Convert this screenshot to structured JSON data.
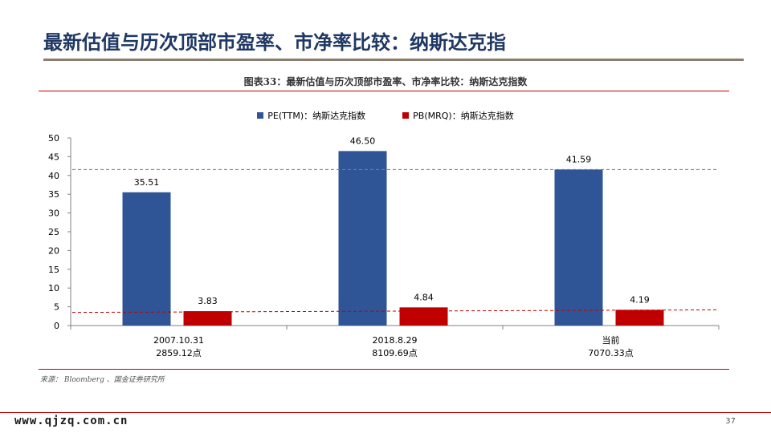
{
  "slide": {
    "title": "最新估值与历次顶部市盈率、市净率比较：纳斯达克指",
    "page_number": "37",
    "watermark": "www.qjzq.com.cn"
  },
  "figure": {
    "caption": "图表33：最新估值与历次顶部市盈率、市净率比较：纳斯达克指数",
    "source": "来源： Bloomberg 、国金证券研究所"
  },
  "colors": {
    "pe": "#2f5597",
    "pb": "#c00000",
    "title": "#1f3864"
  },
  "chart_data": {
    "type": "bar",
    "categories": [
      [
        "2007.10.31",
        "2859.12点"
      ],
      [
        "2018.8.29",
        "8109.69点"
      ],
      [
        "当前",
        "7070.33点"
      ]
    ],
    "series": [
      {
        "name": "PE(TTM)：纳斯达克指数",
        "values": [
          35.51,
          46.5,
          41.59
        ],
        "labels": [
          "35.51",
          "46.50",
          "41.59"
        ]
      },
      {
        "name": "PB(MRQ)：纳斯达克指数",
        "values": [
          3.83,
          4.84,
          4.19
        ],
        "labels": [
          "3.83",
          "4.84",
          "4.19"
        ]
      }
    ],
    "ylim": [
      0,
      50
    ],
    "yticks": [
      0,
      5,
      10,
      15,
      20,
      25,
      30,
      35,
      40,
      45,
      50
    ],
    "reference_lines": [
      {
        "series": 0,
        "from_value": 41.59,
        "to_value": 41.59,
        "style": "dashed"
      },
      {
        "series": 1,
        "from_value": 3.5,
        "to_value": 4.19,
        "style": "dashed"
      }
    ],
    "legend_position": "top-center",
    "grid": false
  }
}
